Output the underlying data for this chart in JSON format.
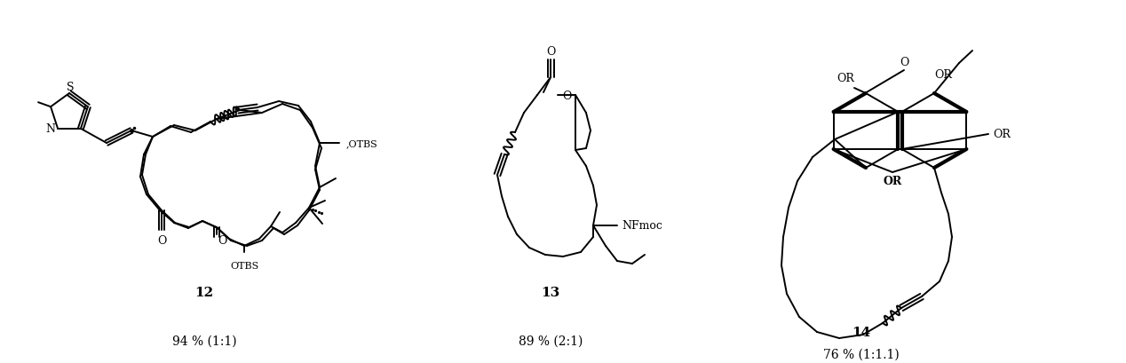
{
  "fig_width": 12.68,
  "fig_height": 4.1,
  "dpi": 100,
  "bg_color": "#ffffff",
  "lw": 1.4,
  "bold_lw": 3.0,
  "label_12": "12",
  "label_13": "13",
  "label_14": "14",
  "yield_12": "94 % (1:1)",
  "yield_13": "89 % (2:1)",
  "yield_14": "76 % (1:1.1)"
}
